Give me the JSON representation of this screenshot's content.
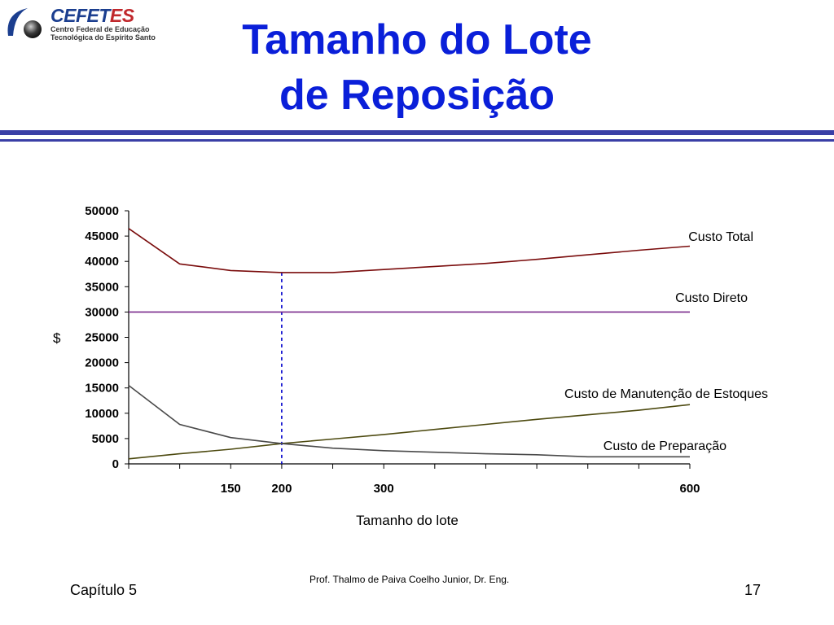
{
  "logo": {
    "name_main": "CEFET",
    "name_accent": "ES",
    "line1": "Centro Federal de Educação",
    "line2": "Tecnológica do Espírito Santo"
  },
  "slide": {
    "title_line1": "Tamanho do Lote",
    "title_line2": "de Reposição",
    "author": "Prof. Thalmo de Paiva Coelho Junior, Dr. Eng.",
    "chapter": "Capítulo 5",
    "page_number": "17",
    "title_color": "#0a1fd9",
    "rule_color": "#3a3fa6"
  },
  "chart_data": {
    "type": "line",
    "xlabel": "Tamanho do lote",
    "ylabel": "$",
    "ylim": [
      0,
      50000
    ],
    "yticks": [
      "0",
      "5000",
      "10000",
      "15000",
      "20000",
      "25000",
      "30000",
      "35000",
      "40000",
      "45000",
      "50000"
    ],
    "x": [
      50,
      100,
      150,
      200,
      250,
      300,
      350,
      400,
      450,
      500,
      550,
      600
    ],
    "xtick_labels": [
      {
        "x": 150,
        "label": "150"
      },
      {
        "x": 200,
        "label": "200"
      },
      {
        "x": 300,
        "label": "300"
      },
      {
        "x": 600,
        "label": "600"
      }
    ],
    "optimum_x": 200,
    "optimum_color": "#0000cc",
    "series": [
      {
        "name": "Custo Total",
        "color": "#7a0c0c",
        "values": [
          46500,
          39500,
          38200,
          37800,
          37800,
          38400,
          39000,
          39600,
          40400,
          41300,
          42200,
          43000
        ]
      },
      {
        "name": "Custo Direto",
        "color": "#7a2a8c",
        "values": [
          30000,
          30000,
          30000,
          30000,
          30000,
          30000,
          30000,
          30000,
          30000,
          30000,
          30000,
          30000
        ]
      },
      {
        "name": "Custo de Manutenção de Estoques",
        "color": "#4d4a10",
        "values": [
          1000,
          2000,
          2900,
          4000,
          4900,
          5800,
          6800,
          7800,
          8800,
          9700,
          10600,
          11700
        ]
      },
      {
        "name": "Custo de Preparação",
        "color": "#4a4a4a",
        "values": [
          15500,
          7800,
          5200,
          4000,
          3100,
          2600,
          2300,
          2000,
          1800,
          1400,
          1400,
          1400
        ]
      }
    ]
  }
}
